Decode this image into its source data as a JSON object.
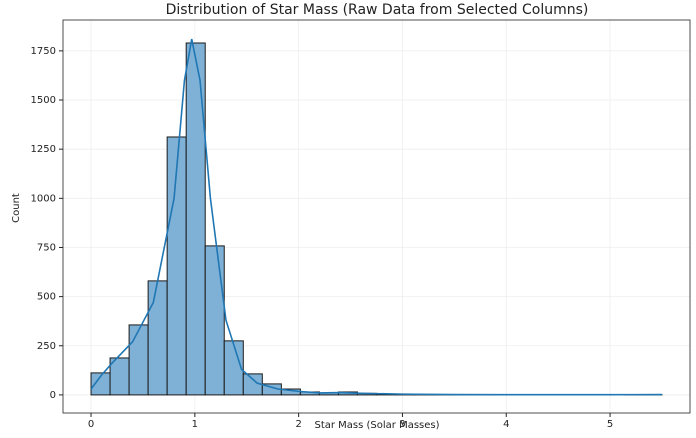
{
  "chart_data": {
    "type": "histogram",
    "title": "Distribution of Star Mass (Raw Data from Selected Columns)",
    "x_label": "Star Mass (Solar Masses)",
    "y_label": "Count",
    "bins": [
      0,
      0.1833,
      0.3667,
      0.55,
      0.7333,
      0.9167,
      1.1,
      1.2833,
      1.4667,
      1.65,
      1.8333,
      2.0167,
      2.2,
      2.3833,
      2.5667,
      2.75,
      2.9333,
      3.1167,
      3.3,
      3.4833,
      3.6667,
      3.85,
      4.0333,
      4.2167,
      4.4,
      4.5833,
      4.7667,
      4.95,
      5.1333,
      5.3167,
      5.5
    ],
    "counts": [
      112,
      188,
      356,
      580,
      1312,
      1790,
      758,
      275,
      107,
      56,
      30,
      15,
      10,
      15,
      8,
      3,
      2,
      2,
      1,
      1,
      1,
      1,
      0,
      1,
      0,
      0,
      0,
      0,
      1,
      1
    ],
    "color": "#7fb0d6",
    "edge_color": "#1a1a1a",
    "kde": {
      "color": "#1f77b4",
      "x": [
        0,
        0.1,
        0.2,
        0.4,
        0.6,
        0.8,
        0.9,
        0.97,
        1.05,
        1.15,
        1.3,
        1.45,
        1.6,
        1.8,
        2.0,
        2.2,
        2.4,
        2.6,
        3.0,
        3.5,
        4.0,
        5.0,
        5.5
      ],
      "y": [
        30,
        100,
        160,
        270,
        470,
        1000,
        1600,
        1810,
        1600,
        1000,
        380,
        130,
        60,
        30,
        18,
        10,
        12,
        8,
        4,
        2,
        1,
        1,
        2
      ]
    },
    "xlim": [
      -0.27,
      5.77
    ],
    "ylim": [
      -92,
      1907
    ],
    "xticks": [
      0,
      1,
      2,
      3,
      4,
      5
    ],
    "yticks": [
      0,
      250,
      500,
      750,
      1000,
      1250,
      1500,
      1750
    ],
    "grid": true
  }
}
